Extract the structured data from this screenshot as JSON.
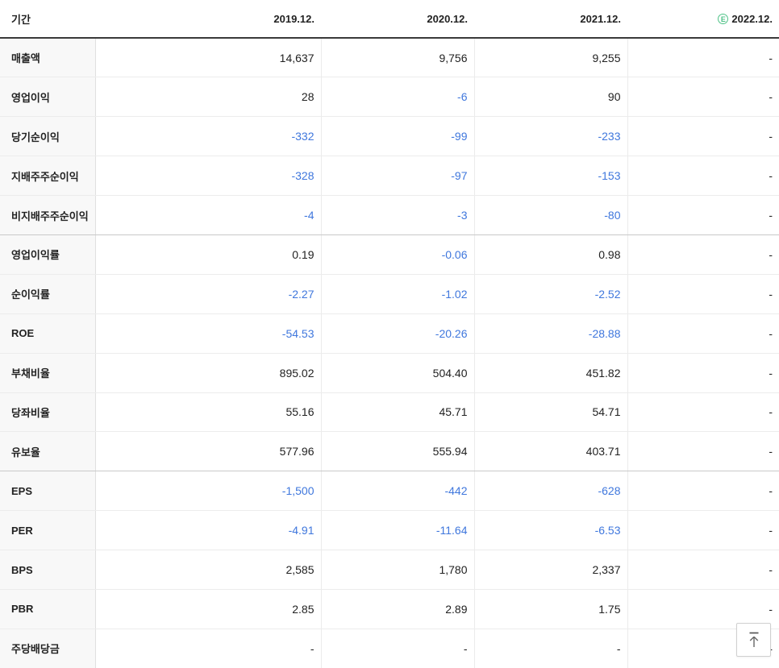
{
  "colors": {
    "negative_value": "#3f77dd",
    "estimate_green": "#4fc287",
    "header_border": "#3a3a3a"
  },
  "table": {
    "period_header": "기간",
    "estimate_icon": "E",
    "columns": [
      {
        "label": "2019.12.",
        "estimate": false
      },
      {
        "label": "2020.12.",
        "estimate": false
      },
      {
        "label": "2021.12.",
        "estimate": false
      },
      {
        "label": "2022.12.",
        "estimate": true
      }
    ],
    "rows": [
      {
        "label": "매출액",
        "values": [
          "14,637",
          "9,756",
          "9,255",
          "-"
        ]
      },
      {
        "label": "영업이익",
        "values": [
          "28",
          "-6",
          "90",
          "-"
        ]
      },
      {
        "label": "당기순이익",
        "values": [
          "-332",
          "-99",
          "-233",
          "-"
        ]
      },
      {
        "label": "지배주주순이익",
        "values": [
          "-328",
          "-97",
          "-153",
          "-"
        ]
      },
      {
        "label": "비지배주주순이익",
        "values": [
          "-4",
          "-3",
          "-80",
          "-"
        ],
        "group_end": true
      },
      {
        "label": "영업이익률",
        "values": [
          "0.19",
          "-0.06",
          "0.98",
          "-"
        ]
      },
      {
        "label": "순이익률",
        "values": [
          "-2.27",
          "-1.02",
          "-2.52",
          "-"
        ]
      },
      {
        "label": "ROE",
        "values": [
          "-54.53",
          "-20.26",
          "-28.88",
          "-"
        ]
      },
      {
        "label": "부채비율",
        "values": [
          "895.02",
          "504.40",
          "451.82",
          "-"
        ]
      },
      {
        "label": "당좌비율",
        "values": [
          "55.16",
          "45.71",
          "54.71",
          "-"
        ]
      },
      {
        "label": "유보율",
        "values": [
          "577.96",
          "555.94",
          "403.71",
          "-"
        ],
        "group_end": true
      },
      {
        "label": "EPS",
        "values": [
          "-1,500",
          "-442",
          "-628",
          "-"
        ]
      },
      {
        "label": "PER",
        "values": [
          "-4.91",
          "-11.64",
          "-6.53",
          "-"
        ]
      },
      {
        "label": "BPS",
        "values": [
          "2,585",
          "1,780",
          "2,337",
          "-"
        ]
      },
      {
        "label": "PBR",
        "values": [
          "2.85",
          "2.89",
          "1.75",
          "-"
        ]
      },
      {
        "label": "주당배당금",
        "values": [
          "-",
          "-",
          "-",
          "-"
        ]
      }
    ]
  },
  "scroll_top_button": {
    "icon": "arrow-up-to-top-icon"
  }
}
